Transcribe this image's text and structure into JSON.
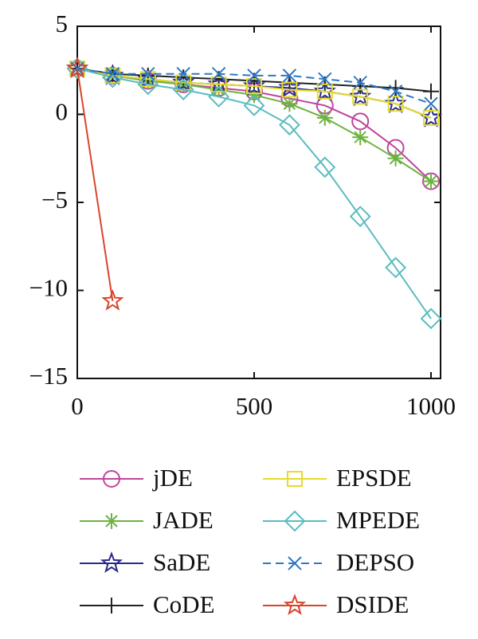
{
  "chart_data": {
    "type": "line",
    "x": [
      0,
      100,
      200,
      300,
      400,
      500,
      600,
      700,
      800,
      900,
      1000
    ],
    "xlim": [
      0,
      1027
    ],
    "xticks": [
      0,
      500,
      1000
    ],
    "ylim": [
      -15,
      5
    ],
    "yticks": [
      5,
      0,
      {
        "value": -5,
        "label": "−5"
      },
      {
        "value": -10,
        "label": "−10"
      },
      {
        "value": -15,
        "label": "−15"
      }
    ],
    "legend": "below",
    "series": [
      {
        "name": "jDE",
        "color": "#c0449c",
        "marker": "circle",
        "dash": false,
        "values": [
          2.6,
          2.2,
          1.9,
          1.7,
          1.5,
          1.3,
          0.9,
          0.5,
          -0.4,
          -1.9,
          -3.8
        ]
      },
      {
        "name": "JADE",
        "color": "#6cb33f",
        "marker": "asterisk",
        "dash": false,
        "values": [
          2.6,
          2.2,
          1.9,
          1.7,
          1.4,
          1.1,
          0.6,
          -0.2,
          -1.3,
          -2.5,
          -3.8
        ]
      },
      {
        "name": "SaDE",
        "color": "#2a2a8c",
        "marker": "star",
        "dash": false,
        "values": [
          2.6,
          2.2,
          2.0,
          1.8,
          1.7,
          1.6,
          1.5,
          1.3,
          1.0,
          0.6,
          -0.2
        ]
      },
      {
        "name": "CoDE",
        "color": "#222222",
        "marker": "plus",
        "dash": false,
        "values": [
          2.6,
          2.3,
          2.2,
          2.1,
          2.0,
          1.9,
          1.8,
          1.7,
          1.6,
          1.5,
          1.3
        ]
      },
      {
        "name": "EPSDE",
        "color": "#e6dc2c",
        "marker": "square",
        "dash": false,
        "values": [
          2.6,
          2.2,
          2.0,
          1.8,
          1.7,
          1.6,
          1.4,
          1.3,
          1.0,
          0.6,
          -0.2
        ]
      },
      {
        "name": "MPEDE",
        "color": "#5bbcc0",
        "marker": "diamond",
        "dash": false,
        "values": [
          2.6,
          2.1,
          1.7,
          1.4,
          1.0,
          0.5,
          -0.6,
          -3.0,
          -5.8,
          -8.7,
          -11.6
        ]
      },
      {
        "name": "DEPSO",
        "color": "#2f78c4",
        "marker": "x",
        "dash": true,
        "values": [
          2.6,
          2.3,
          2.3,
          2.3,
          2.3,
          2.2,
          2.2,
          2.0,
          1.8,
          1.3,
          0.6
        ]
      },
      {
        "name": "DSIDE",
        "color": "#d9452b",
        "marker": "star",
        "dash": false,
        "values": [
          2.6,
          -10.6,
          null,
          null,
          null,
          null,
          null,
          null,
          null,
          null,
          null
        ]
      }
    ]
  }
}
